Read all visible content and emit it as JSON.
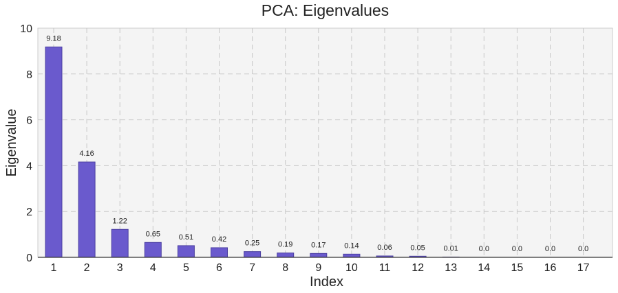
{
  "chart_data": {
    "type": "bar",
    "title": "PCA: Eigenvalues",
    "xlabel": "Index",
    "ylabel": "Eigenvalue",
    "categories": [
      "1",
      "2",
      "3",
      "4",
      "5",
      "6",
      "7",
      "8",
      "9",
      "10",
      "11",
      "12",
      "13",
      "14",
      "15",
      "16",
      "17"
    ],
    "values": [
      9.18,
      4.16,
      1.22,
      0.65,
      0.51,
      0.42,
      0.25,
      0.19,
      0.17,
      0.14,
      0.06,
      0.05,
      0.01,
      0.0,
      0.0,
      0.0,
      0.0
    ],
    "value_labels": [
      "9.18",
      "4.16",
      "1.22",
      "0.65",
      "0.51",
      "0.42",
      "0.25",
      "0.19",
      "0.17",
      "0.14",
      "0.06",
      "0.05",
      "0.01",
      "0.0",
      "0.0",
      "0.0",
      "0.0"
    ],
    "ylim": [
      0,
      10
    ],
    "yticks": [
      0,
      2,
      4,
      6,
      8,
      10
    ],
    "grid": true,
    "legend": "none",
    "colors": {
      "bar_fill": "#6a5acd",
      "bar_stroke": "#4b3fa0",
      "plot_background": "#f4f4f4",
      "grid": "#c8c8c8",
      "frame": "#cccccc",
      "axis": "#333333"
    }
  }
}
